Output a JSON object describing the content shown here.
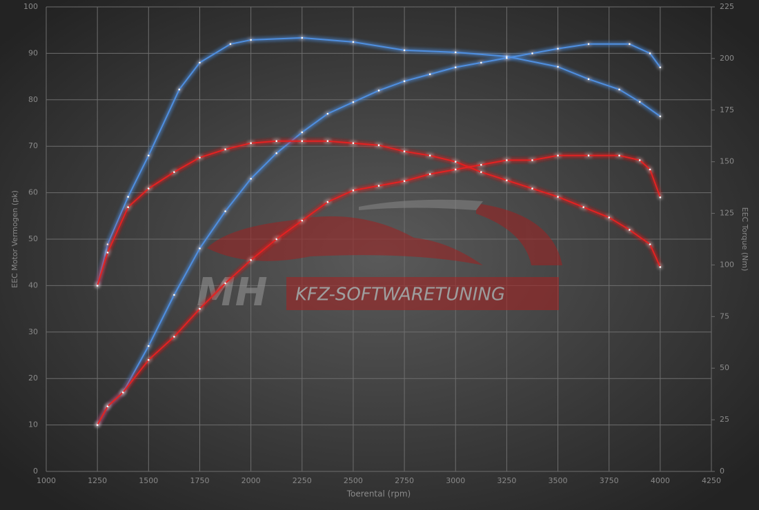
{
  "chart_data": {
    "type": "line",
    "xlabel": "Toerental (rpm)",
    "ylabel": "EEC Motor Vermogen (pk)",
    "y2label": "EEC Torque (Nm)",
    "watermark": [
      "MH",
      "KFZ-SOFTWARETUNING"
    ],
    "xlim": [
      1000,
      4250
    ],
    "xticks": [
      1000,
      1250,
      1500,
      1750,
      2000,
      2250,
      2500,
      2750,
      3000,
      3250,
      3500,
      3750,
      4000,
      4250
    ],
    "ylim": [
      0,
      100
    ],
    "yticks": [
      0,
      10,
      20,
      30,
      40,
      50,
      60,
      70,
      80,
      90,
      100
    ],
    "y2lim": [
      0,
      225
    ],
    "y2ticks": [
      0,
      25,
      50,
      75,
      100,
      125,
      150,
      175,
      200,
      225
    ],
    "grid": true,
    "series": [
      {
        "color": "#4f8fe0",
        "axis": "y2",
        "x": [
          1250,
          1300,
          1400,
          1500,
          1650,
          1750,
          1900,
          2000,
          2250,
          2500,
          2750,
          3000,
          3250,
          3500,
          3650,
          3800,
          3900,
          4000
        ],
        "values": [
          90,
          110,
          133,
          153,
          185,
          198,
          207,
          209,
          210,
          208,
          204,
          203,
          201,
          196,
          190,
          185,
          179,
          172
        ]
      },
      {
        "color": "#4f8fe0",
        "x": [
          1250,
          1300,
          1375,
          1500,
          1625,
          1750,
          1875,
          2000,
          2125,
          2250,
          2375,
          2500,
          2625,
          2750,
          2875,
          3000,
          3125,
          3250,
          3375,
          3500,
          3650,
          3850,
          3950,
          4000
        ],
        "values": [
          10,
          14,
          17,
          27,
          38,
          48,
          56,
          63,
          68.5,
          73,
          77,
          79.5,
          82,
          84,
          85.5,
          87,
          88,
          89,
          90,
          91,
          92,
          92,
          90,
          87
        ]
      },
      {
        "color": "#e32222",
        "axis": "y2",
        "x": [
          1250,
          1300,
          1400,
          1500,
          1625,
          1750,
          1875,
          2000,
          2125,
          2250,
          2375,
          2500,
          2625,
          2750,
          2875,
          3000,
          3125,
          3250,
          3375,
          3500,
          3625,
          3750,
          3850,
          3950,
          4000
        ],
        "values": [
          90,
          106,
          128,
          137,
          145,
          152,
          156,
          159,
          160,
          160,
          160,
          159,
          158,
          155,
          153,
          150,
          145,
          141,
          137,
          133,
          128,
          123,
          117,
          110,
          99
        ]
      },
      {
        "color": "#e32222",
        "x": [
          1250,
          1300,
          1375,
          1500,
          1625,
          1750,
          1875,
          2000,
          2125,
          2250,
          2375,
          2500,
          2625,
          2750,
          2875,
          3000,
          3125,
          3250,
          3375,
          3500,
          3650,
          3800,
          3900,
          3950,
          4000
        ],
        "values": [
          10,
          14,
          17,
          24,
          29,
          35,
          40.5,
          45.5,
          50,
          54,
          58,
          60.5,
          61.5,
          62.5,
          64,
          65,
          66,
          67,
          67,
          68,
          68,
          68,
          67,
          65,
          59
        ]
      }
    ]
  }
}
